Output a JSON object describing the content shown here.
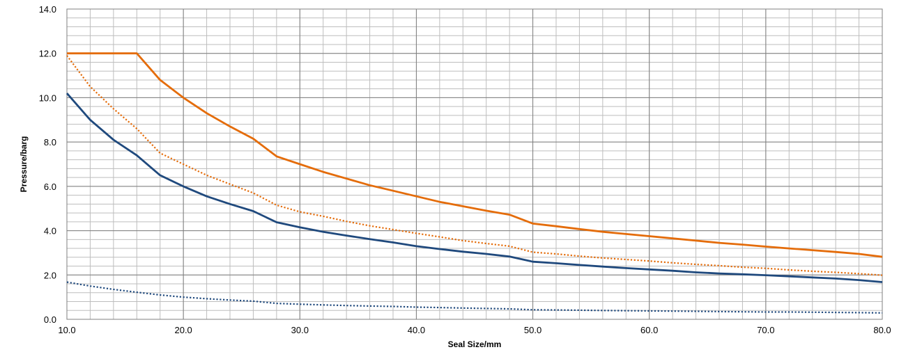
{
  "chart_data": {
    "type": "line",
    "title": "",
    "xlabel": "Seal Size/mm",
    "ylabel": "Pressure/barg",
    "xlim": [
      10,
      80
    ],
    "ylim": [
      0,
      14
    ],
    "x_major_step": 10,
    "x_minor_step": 2,
    "y_major_step": 2,
    "y_minor_step": 0.4,
    "x_tick_labels": [
      "10.0",
      "20.0",
      "30.0",
      "40.0",
      "50.0",
      "60.0",
      "70.0",
      "80.0"
    ],
    "y_tick_labels": [
      "0.0",
      "2.0",
      "4.0",
      "6.0",
      "8.0",
      "10.0",
      "12.0",
      "14.0"
    ],
    "grid": true,
    "legend": "none",
    "series": [
      {
        "color": "#e46c0a",
        "style": "solid",
        "points": [
          [
            10,
            12.0
          ],
          [
            12,
            12.0
          ],
          [
            14,
            12.0
          ],
          [
            16,
            12.0
          ],
          [
            18,
            10.8
          ],
          [
            20,
            10.0
          ],
          [
            22,
            9.3
          ],
          [
            24,
            8.7
          ],
          [
            26,
            8.15
          ],
          [
            28,
            7.35
          ],
          [
            30,
            7.0
          ],
          [
            32,
            6.65
          ],
          [
            34,
            6.35
          ],
          [
            36,
            6.05
          ],
          [
            38,
            5.8
          ],
          [
            40,
            5.55
          ],
          [
            42,
            5.3
          ],
          [
            44,
            5.1
          ],
          [
            46,
            4.9
          ],
          [
            48,
            4.72
          ],
          [
            50,
            4.32
          ],
          [
            52,
            4.2
          ],
          [
            54,
            4.07
          ],
          [
            56,
            3.95
          ],
          [
            58,
            3.85
          ],
          [
            60,
            3.75
          ],
          [
            62,
            3.65
          ],
          [
            64,
            3.55
          ],
          [
            66,
            3.45
          ],
          [
            68,
            3.37
          ],
          [
            70,
            3.28
          ],
          [
            72,
            3.2
          ],
          [
            74,
            3.12
          ],
          [
            76,
            3.04
          ],
          [
            78,
            2.95
          ],
          [
            80,
            2.82
          ]
        ]
      },
      {
        "color": "#e46c0a",
        "style": "dotted",
        "points": [
          [
            10,
            11.9
          ],
          [
            12,
            10.5
          ],
          [
            14,
            9.5
          ],
          [
            16,
            8.6
          ],
          [
            18,
            7.5
          ],
          [
            20,
            7.0
          ],
          [
            22,
            6.5
          ],
          [
            24,
            6.1
          ],
          [
            26,
            5.7
          ],
          [
            28,
            5.15
          ],
          [
            30,
            4.85
          ],
          [
            32,
            4.65
          ],
          [
            34,
            4.42
          ],
          [
            36,
            4.22
          ],
          [
            38,
            4.05
          ],
          [
            40,
            3.88
          ],
          [
            42,
            3.72
          ],
          [
            44,
            3.55
          ],
          [
            46,
            3.42
          ],
          [
            48,
            3.3
          ],
          [
            50,
            3.03
          ],
          [
            52,
            2.95
          ],
          [
            54,
            2.85
          ],
          [
            56,
            2.77
          ],
          [
            58,
            2.7
          ],
          [
            60,
            2.63
          ],
          [
            62,
            2.55
          ],
          [
            64,
            2.48
          ],
          [
            66,
            2.42
          ],
          [
            68,
            2.35
          ],
          [
            70,
            2.3
          ],
          [
            72,
            2.23
          ],
          [
            74,
            2.17
          ],
          [
            76,
            2.12
          ],
          [
            78,
            2.06
          ],
          [
            80,
            1.99
          ]
        ]
      },
      {
        "color": "#1f497d",
        "style": "solid",
        "points": [
          [
            10,
            10.2
          ],
          [
            12,
            9.0
          ],
          [
            14,
            8.1
          ],
          [
            16,
            7.4
          ],
          [
            18,
            6.5
          ],
          [
            20,
            6.0
          ],
          [
            22,
            5.55
          ],
          [
            24,
            5.2
          ],
          [
            26,
            4.88
          ],
          [
            28,
            4.38
          ],
          [
            30,
            4.15
          ],
          [
            32,
            3.95
          ],
          [
            34,
            3.78
          ],
          [
            36,
            3.62
          ],
          [
            38,
            3.47
          ],
          [
            40,
            3.3
          ],
          [
            42,
            3.17
          ],
          [
            44,
            3.05
          ],
          [
            46,
            2.95
          ],
          [
            48,
            2.83
          ],
          [
            50,
            2.6
          ],
          [
            52,
            2.53
          ],
          [
            54,
            2.45
          ],
          [
            56,
            2.38
          ],
          [
            58,
            2.31
          ],
          [
            60,
            2.25
          ],
          [
            62,
            2.19
          ],
          [
            64,
            2.12
          ],
          [
            66,
            2.07
          ],
          [
            68,
            2.03
          ],
          [
            70,
            1.99
          ],
          [
            72,
            1.94
          ],
          [
            74,
            1.89
          ],
          [
            76,
            1.84
          ],
          [
            78,
            1.77
          ],
          [
            80,
            1.68
          ]
        ]
      },
      {
        "color": "#1f497d",
        "style": "dotted",
        "points": [
          [
            10,
            1.68
          ],
          [
            12,
            1.5
          ],
          [
            14,
            1.35
          ],
          [
            16,
            1.22
          ],
          [
            18,
            1.1
          ],
          [
            20,
            1.0
          ],
          [
            22,
            0.93
          ],
          [
            24,
            0.87
          ],
          [
            26,
            0.82
          ],
          [
            28,
            0.72
          ],
          [
            30,
            0.68
          ],
          [
            32,
            0.65
          ],
          [
            34,
            0.62
          ],
          [
            36,
            0.6
          ],
          [
            38,
            0.58
          ],
          [
            40,
            0.55
          ],
          [
            42,
            0.53
          ],
          [
            44,
            0.51
          ],
          [
            46,
            0.49
          ],
          [
            48,
            0.47
          ],
          [
            50,
            0.43
          ],
          [
            52,
            0.42
          ],
          [
            54,
            0.41
          ],
          [
            56,
            0.4
          ],
          [
            58,
            0.39
          ],
          [
            60,
            0.38
          ],
          [
            62,
            0.37
          ],
          [
            64,
            0.36
          ],
          [
            66,
            0.35
          ],
          [
            68,
            0.34
          ],
          [
            70,
            0.33
          ],
          [
            72,
            0.33
          ],
          [
            74,
            0.32
          ],
          [
            76,
            0.31
          ],
          [
            78,
            0.3
          ],
          [
            80,
            0.29
          ]
        ]
      }
    ]
  }
}
